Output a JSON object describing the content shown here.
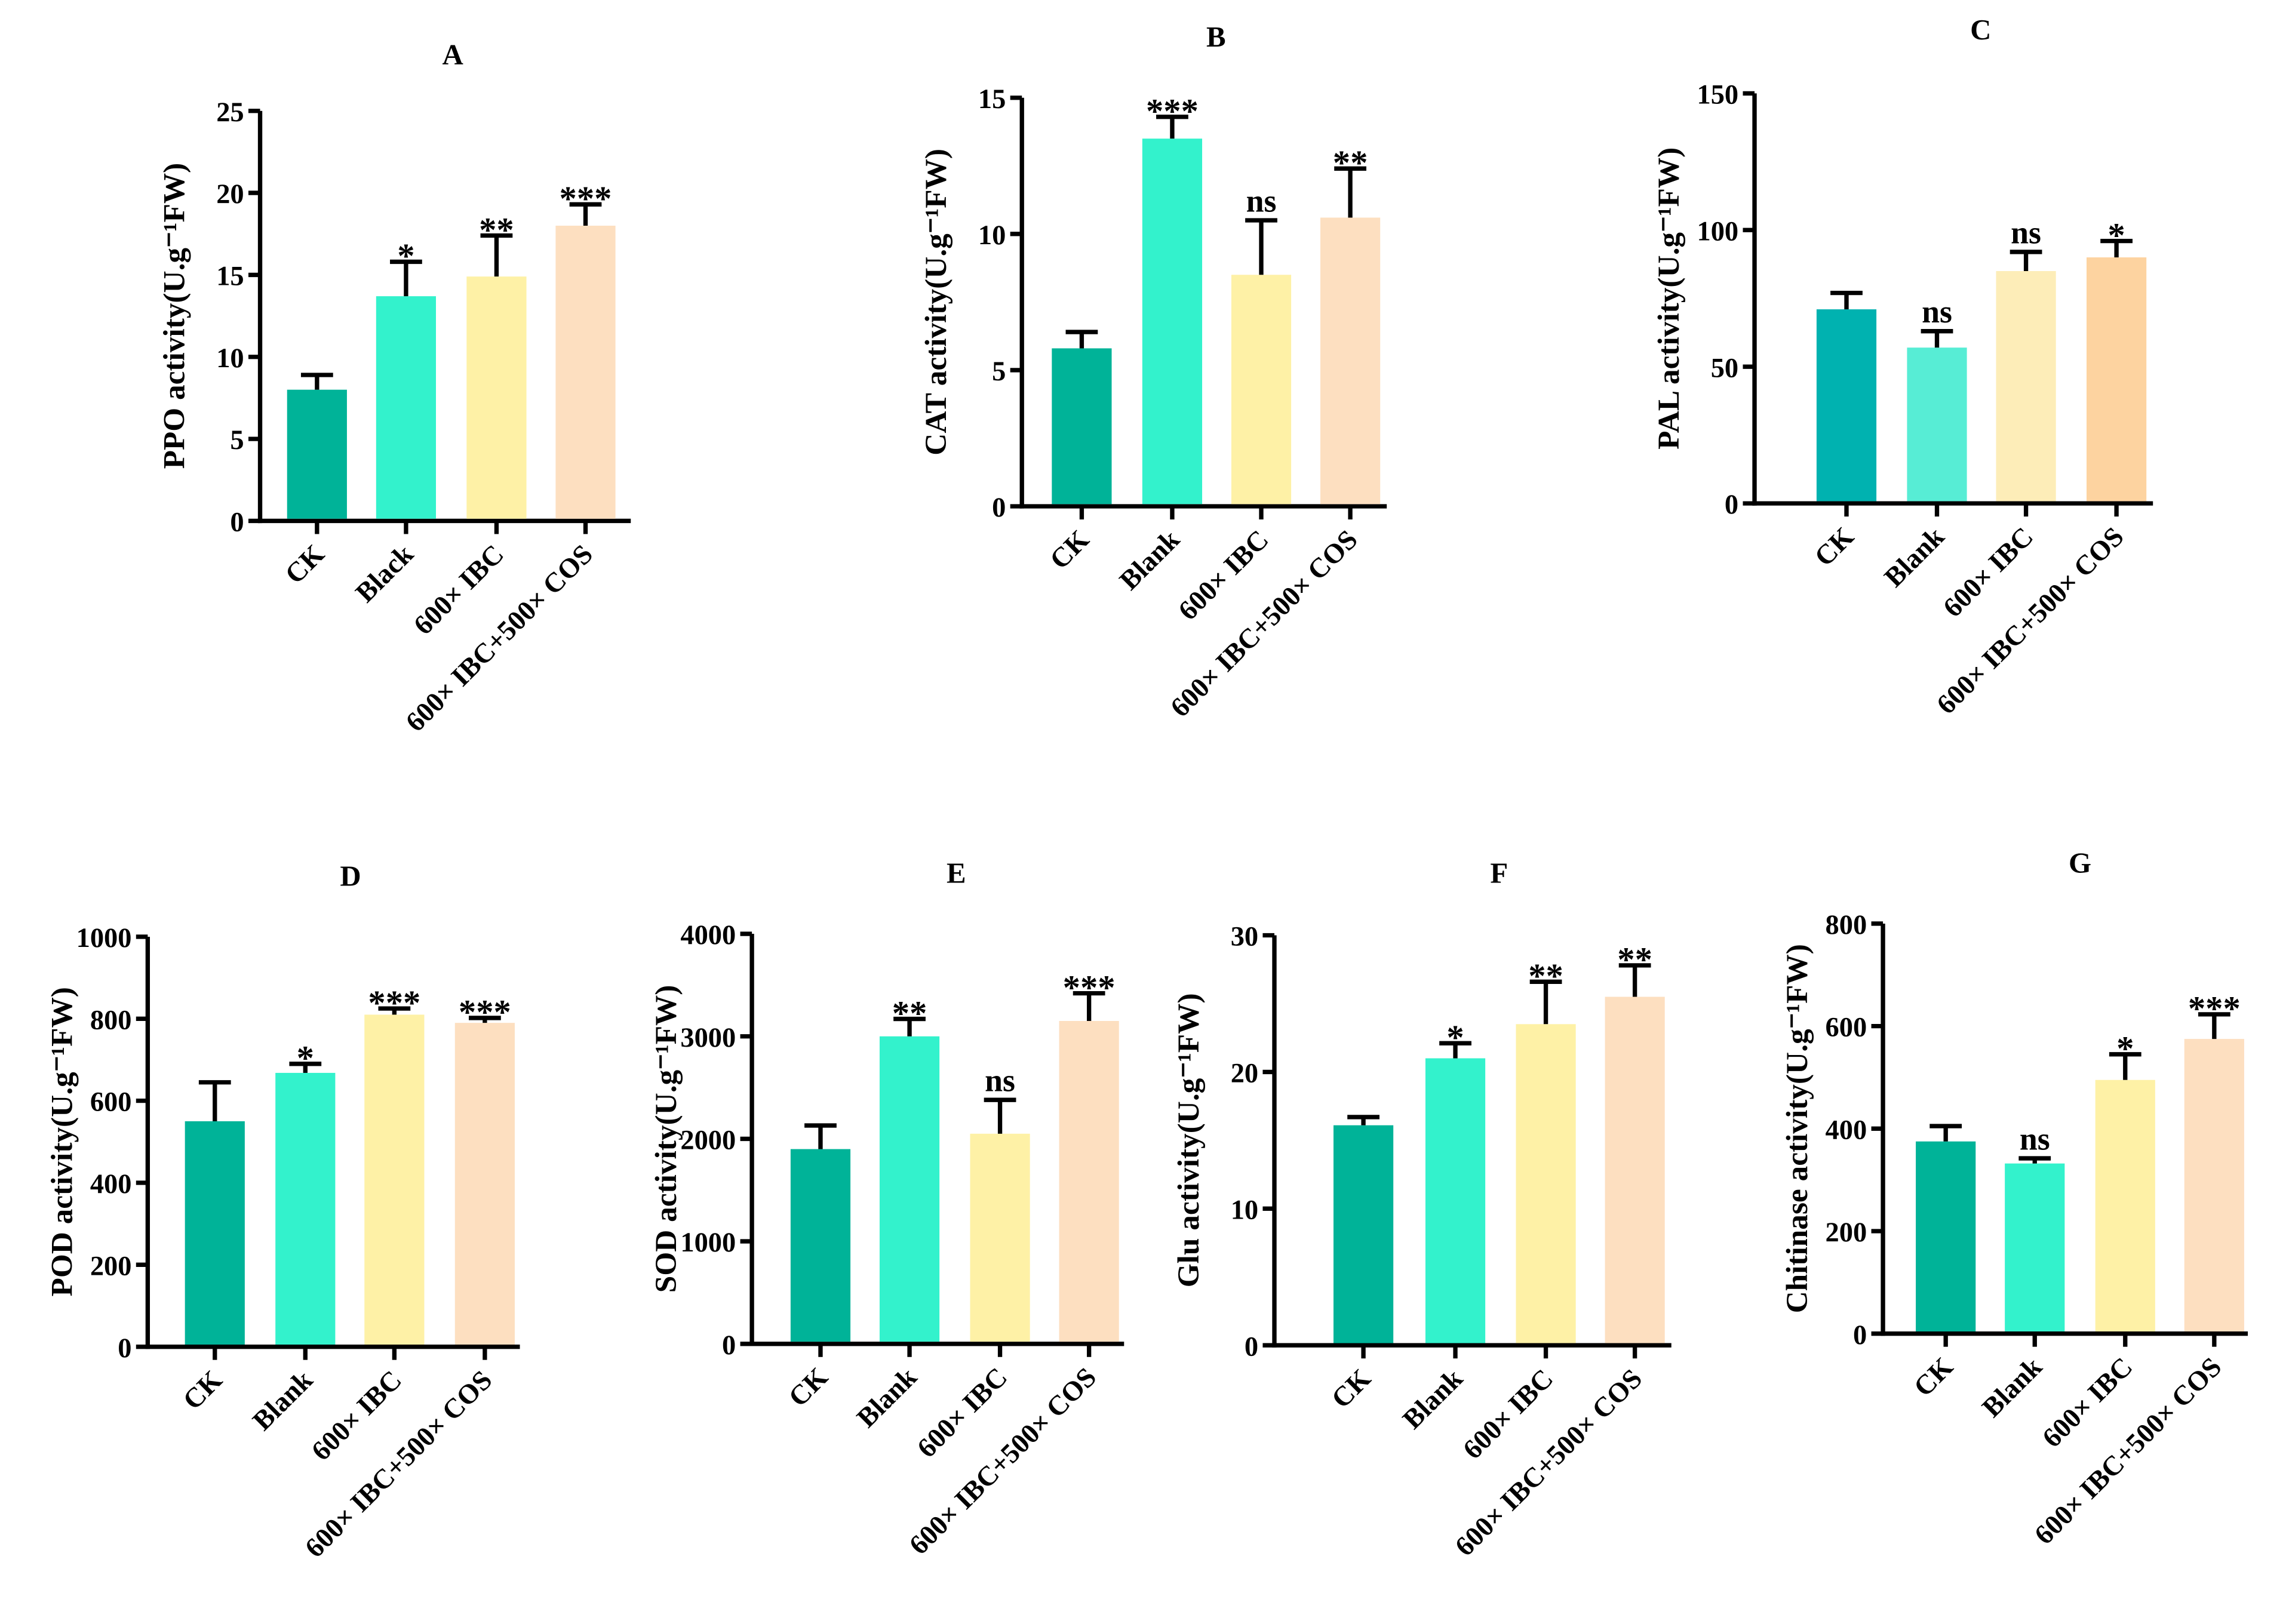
{
  "chart_data": [
    {
      "type": "bar",
      "title": "A",
      "ylabel": "PPO activity(U.g⁻¹FW)",
      "ylim": [
        0,
        25
      ],
      "yticks": [
        0,
        5,
        10,
        15,
        20,
        25
      ],
      "categories": [
        "CK",
        "Black",
        "600× IBC",
        "600× IBC+500× COS"
      ],
      "values": [
        8.0,
        13.7,
        14.9,
        18.0
      ],
      "errors": [
        0.9,
        2.1,
        2.5,
        1.3
      ],
      "significance": [
        "",
        "*",
        "**",
        "***"
      ],
      "colors": [
        "#00B398",
        "#33F2CC",
        "#FEF1A6",
        "#FDDFC0"
      ]
    },
    {
      "type": "bar",
      "title": "B",
      "ylabel": "CAT activity(U.g⁻¹FW)",
      "ylim": [
        0,
        15
      ],
      "yticks": [
        0,
        5,
        10,
        15
      ],
      "categories": [
        "CK",
        "Blank",
        "600× IBC",
        "600× IBC+500× COS"
      ],
      "values": [
        5.8,
        13.5,
        8.5,
        10.6
      ],
      "errors": [
        0.6,
        0.8,
        2.0,
        1.8
      ],
      "significance": [
        "",
        "***",
        "ns",
        "**"
      ],
      "colors": [
        "#00B398",
        "#33F2CC",
        "#FEF1A6",
        "#FDDFC0"
      ]
    },
    {
      "type": "bar",
      "title": "C",
      "ylabel": "PAL activity(U.g⁻¹FW)",
      "ylim": [
        0,
        150
      ],
      "yticks": [
        0,
        50,
        100,
        150
      ],
      "categories": [
        "CK",
        "Blank",
        "600× IBC",
        "600× IBC+500× COS"
      ],
      "values": [
        71,
        57,
        85,
        90
      ],
      "errors": [
        6,
        6,
        7,
        6
      ],
      "significance": [
        "",
        "ns",
        "ns",
        "*"
      ],
      "colors": [
        "#00B2B0",
        "#57EDD5",
        "#FDEDB8",
        "#FDD3A0"
      ]
    },
    {
      "type": "bar",
      "title": "D",
      "ylabel": "POD activity(U.g⁻¹FW)",
      "ylim": [
        0,
        1000
      ],
      "yticks": [
        0,
        200,
        400,
        600,
        800,
        1000
      ],
      "categories": [
        "CK",
        "Blank",
        "600× IBC",
        "600× IBC+500× COS"
      ],
      "values": [
        550,
        668,
        810,
        790
      ],
      "errors": [
        95,
        22,
        15,
        12
      ],
      "significance": [
        "",
        "*",
        "***",
        "***"
      ],
      "colors": [
        "#00B398",
        "#33F2CC",
        "#FEF1A6",
        "#FDDFC0"
      ]
    },
    {
      "type": "bar",
      "title": "E",
      "ylabel": "SOD activity(U.g⁻¹FW)",
      "ylim": [
        0,
        4000
      ],
      "yticks": [
        0,
        1000,
        2000,
        3000,
        4000
      ],
      "categories": [
        "CK",
        "Blank",
        "600× IBC",
        "600× IBC+500× COS"
      ],
      "values": [
        1900,
        3000,
        2050,
        3150
      ],
      "errors": [
        230,
        170,
        330,
        270
      ],
      "significance": [
        "",
        "**",
        "ns",
        "***"
      ],
      "colors": [
        "#00B398",
        "#33F2CC",
        "#FEF1A6",
        "#FDDFC0"
      ]
    },
    {
      "type": "bar",
      "title": "F",
      "ylabel": "Glu activity(U.g⁻¹FW)",
      "ylim": [
        0,
        30
      ],
      "yticks": [
        0,
        10,
        20,
        30
      ],
      "categories": [
        "CK",
        "Blank",
        "600× IBC",
        "600× IBC+500× COS"
      ],
      "values": [
        16.1,
        21.0,
        23.5,
        25.5
      ],
      "errors": [
        0.6,
        1.1,
        3.1,
        2.3
      ],
      "significance": [
        "",
        "*",
        "**",
        "**"
      ],
      "colors": [
        "#00B398",
        "#33F2CC",
        "#FEF1A6",
        "#FDDFC0"
      ]
    },
    {
      "type": "bar",
      "title": "G",
      "ylabel": "Chitinase activity(U.g⁻¹FW)",
      "ylim": [
        0,
        800
      ],
      "yticks": [
        0,
        200,
        400,
        600,
        800
      ],
      "categories": [
        "CK",
        "Blank",
        "600× IBC",
        "600× IBC+500× COS"
      ],
      "values": [
        375,
        332,
        495,
        575
      ],
      "errors": [
        30,
        10,
        50,
        48
      ],
      "significance": [
        "",
        "ns",
        "*",
        "***"
      ],
      "colors": [
        "#00B398",
        "#33F2CC",
        "#FEF1A6",
        "#FDDFC0"
      ]
    }
  ]
}
